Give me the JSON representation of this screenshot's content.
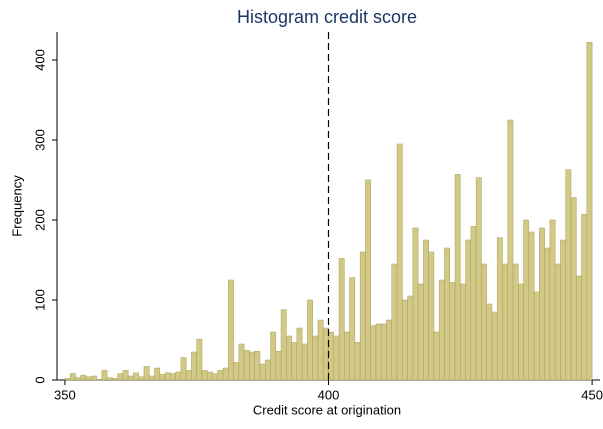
{
  "chart_data": {
    "type": "histogram",
    "title": "Histogram credit score",
    "x_label": "Credit score at origination",
    "y_label": "Frequency",
    "bins": [
      350,
      351,
      352,
      353,
      354,
      355,
      356,
      357,
      358,
      359,
      360,
      361,
      362,
      363,
      364,
      365,
      366,
      367,
      368,
      369,
      370,
      371,
      372,
      373,
      374,
      375,
      376,
      377,
      378,
      379,
      380,
      381,
      382,
      383,
      384,
      385,
      386,
      387,
      388,
      389,
      390,
      391,
      392,
      393,
      394,
      395,
      396,
      397,
      398,
      399,
      400,
      401,
      402,
      403,
      404,
      405,
      406,
      407,
      408,
      409,
      410,
      411,
      412,
      413,
      414,
      415,
      416,
      417,
      418,
      419,
      420,
      421,
      422,
      423,
      424,
      425,
      426,
      427,
      428,
      429,
      430,
      431,
      432,
      433,
      434,
      435,
      436,
      437,
      438,
      439,
      440,
      441,
      442,
      443,
      444,
      445,
      446,
      447,
      448,
      449,
      450
    ],
    "values": [
      2,
      8,
      3,
      6,
      4,
      5,
      1,
      12,
      3,
      2,
      8,
      12,
      5,
      9,
      4,
      17,
      5,
      15,
      7,
      9,
      8,
      10,
      28,
      12,
      35,
      51,
      12,
      10,
      8,
      12,
      15,
      125,
      22,
      45,
      37,
      35,
      36,
      20,
      25,
      60,
      36,
      88,
      55,
      47,
      65,
      45,
      100,
      55,
      75,
      65,
      60,
      55,
      152,
      60,
      128,
      47,
      160,
      250,
      68,
      70,
      70,
      75,
      145,
      295,
      100,
      105,
      190,
      120,
      175,
      160,
      60,
      125,
      165,
      122,
      257,
      120,
      175,
      192,
      253,
      145,
      95,
      85,
      178,
      145,
      325,
      145,
      120,
      200,
      185,
      110,
      190,
      165,
      200,
      145,
      175,
      263,
      228,
      130,
      207,
      422
    ],
    "color": "#d2c987",
    "edge_color": "#a89f5a",
    "vline": 400,
    "xlim": [
      348.5,
      451.5
    ],
    "ylim": [
      0,
      435
    ],
    "xticks": [
      350,
      400,
      450
    ],
    "yticks": [
      0,
      100,
      200,
      300,
      400
    ]
  }
}
